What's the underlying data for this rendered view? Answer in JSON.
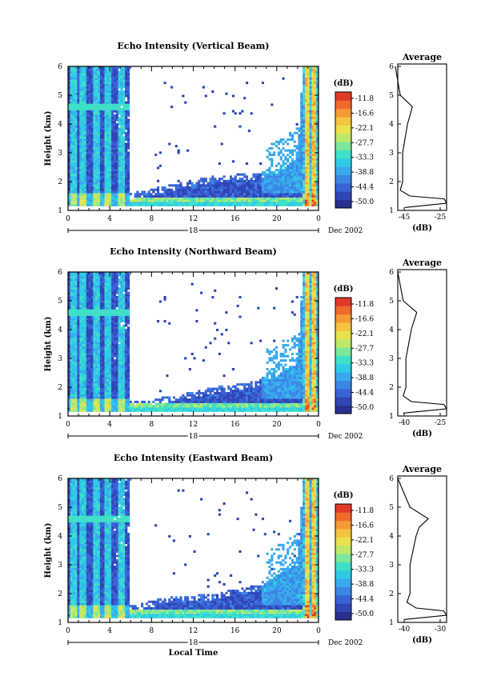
{
  "colormap": [
    "#2a2f8f",
    "#2f46b5",
    "#3a63d6",
    "#3c86e6",
    "#39a9ee",
    "#2fcbe6",
    "#3fe0c8",
    "#7ee89a",
    "#bfe86a",
    "#e9e24f",
    "#f5c33f",
    "#f59a34",
    "#f06a2c",
    "#e03a2a"
  ],
  "colorbar": {
    "unit": "(dB)",
    "ticks": [
      "-11.8",
      "-16.6",
      "-22.1",
      "-27.7",
      "-33.3",
      "-38.8",
      "-44.4",
      "-50.0"
    ]
  },
  "panels": [
    {
      "title": "Echo Intensity (Vertical Beam)",
      "ylabel": "Height (km)",
      "xticks": [
        "0",
        "4",
        "8",
        "12",
        "16",
        "20",
        "0"
      ],
      "date_day": "18",
      "date_label": "Dec 2002",
      "xlabel": "",
      "avg_title": "Average",
      "avg_xticks": [
        "-45",
        "-25"
      ],
      "avg_xlabel": "(dB)"
    },
    {
      "title": "Echo Intensity (Northward Beam)",
      "ylabel": "Height (km)",
      "xticks": [
        "0",
        "4",
        "8",
        "12",
        "16",
        "20",
        "0"
      ],
      "date_day": "18",
      "date_label": "Dec 2002",
      "xlabel": "",
      "avg_title": "Average",
      "avg_xticks": [
        "-40",
        "-25"
      ],
      "avg_xlabel": "(dB)"
    },
    {
      "title": "Echo Intensity (Eastward Beam)",
      "ylabel": "Height (km)",
      "xticks": [
        "0",
        "4",
        "8",
        "12",
        "16",
        "20",
        "0"
      ],
      "date_day": "18",
      "date_label": "Dec 2002",
      "xlabel": "Local Time",
      "avg_title": "Average",
      "avg_xticks": [
        "-40",
        "-30"
      ],
      "avg_xlabel": "(dB)"
    }
  ],
  "chart_data": [
    {
      "type": "heatmap",
      "title": "Echo Intensity (Vertical Beam)",
      "xlabel": "",
      "ylabel": "Height (km)",
      "xlim": [
        0,
        24
      ],
      "ylim": [
        1,
        6
      ],
      "xticks": [
        0,
        4,
        8,
        12,
        16,
        20,
        24
      ],
      "yticks": [
        1,
        2,
        3,
        4,
        5,
        6
      ],
      "colorbar_levels_dB": [
        -50.0,
        -44.4,
        -38.8,
        -33.3,
        -27.7,
        -22.1,
        -16.6,
        -11.8
      ],
      "approx_echo_top_km": [
        {
          "x": 0,
          "y": 6
        },
        {
          "x": 5.5,
          "y": 6
        },
        {
          "x": 6,
          "y": 1.6
        },
        {
          "x": 10,
          "y": 1.9
        },
        {
          "x": 14,
          "y": 2.2
        },
        {
          "x": 18,
          "y": 2.3
        },
        {
          "x": 20,
          "y": 2.5
        },
        {
          "x": 22,
          "y": 3.0
        },
        {
          "x": 22.5,
          "y": 6
        },
        {
          "x": 24,
          "y": 6
        }
      ],
      "average_profile": {
        "xlim": [
          -45,
          -25
        ],
        "xlabel": "(dB)",
        "ylim": [
          1,
          6
        ],
        "height_km": [
          1.1,
          1.25,
          1.4,
          1.5,
          1.7,
          2.0,
          2.5,
          3.0,
          3.5,
          4.0,
          4.3,
          4.6,
          5.0,
          5.5,
          6.0
        ],
        "echo_dB": [
          -42,
          -25,
          -26,
          -40,
          -44,
          -43,
          -43,
          -43,
          -42,
          -41,
          -40,
          -39,
          -44,
          -45,
          -46
        ]
      }
    },
    {
      "type": "heatmap",
      "title": "Echo Intensity (Northward Beam)",
      "xlabel": "",
      "ylabel": "Height (km)",
      "xlim": [
        0,
        24
      ],
      "ylim": [
        1,
        6
      ],
      "xticks": [
        0,
        4,
        8,
        12,
        16,
        20,
        24
      ],
      "yticks": [
        1,
        2,
        3,
        4,
        5,
        6
      ],
      "colorbar_levels_dB": [
        -50.0,
        -44.4,
        -38.8,
        -33.3,
        -27.7,
        -22.1,
        -16.6,
        -11.8
      ],
      "approx_echo_top_km": [
        {
          "x": 0,
          "y": 6
        },
        {
          "x": 5.5,
          "y": 6
        },
        {
          "x": 6,
          "y": 1.5
        },
        {
          "x": 10,
          "y": 1.7
        },
        {
          "x": 14,
          "y": 2.0
        },
        {
          "x": 18,
          "y": 2.2
        },
        {
          "x": 20,
          "y": 2.6
        },
        {
          "x": 22,
          "y": 3.0
        },
        {
          "x": 22.5,
          "y": 6
        },
        {
          "x": 24,
          "y": 6
        }
      ],
      "average_profile": {
        "xlim": [
          -42,
          -24
        ],
        "xlabel": "(dB)",
        "ylim": [
          1,
          6
        ],
        "height_km": [
          1.1,
          1.25,
          1.4,
          1.5,
          1.7,
          2.0,
          2.5,
          3.0,
          3.5,
          4.0,
          4.3,
          4.6,
          5.0,
          5.5,
          6.0
        ],
        "echo_dB": [
          -40,
          -24,
          -25,
          -37,
          -40,
          -39,
          -39,
          -39,
          -38,
          -37,
          -36,
          -35,
          -40,
          -41,
          -42
        ]
      }
    },
    {
      "type": "heatmap",
      "title": "Echo Intensity (Eastward Beam)",
      "xlabel": "Local Time",
      "ylabel": "Height (km)",
      "xlim": [
        0,
        24
      ],
      "ylim": [
        1,
        6
      ],
      "xticks": [
        0,
        4,
        8,
        12,
        16,
        20,
        24
      ],
      "yticks": [
        1,
        2,
        3,
        4,
        5,
        6
      ],
      "colorbar_levels_dB": [
        -50.0,
        -44.4,
        -38.8,
        -33.3,
        -27.7,
        -22.1,
        -16.6,
        -11.8
      ],
      "approx_echo_top_km": [
        {
          "x": 0,
          "y": 6
        },
        {
          "x": 5.5,
          "y": 6
        },
        {
          "x": 6,
          "y": 1.6
        },
        {
          "x": 10,
          "y": 1.9
        },
        {
          "x": 14,
          "y": 2.0
        },
        {
          "x": 18,
          "y": 2.3
        },
        {
          "x": 20,
          "y": 2.8
        },
        {
          "x": 22,
          "y": 3.2
        },
        {
          "x": 22.5,
          "y": 6
        },
        {
          "x": 24,
          "y": 6
        }
      ],
      "average_profile": {
        "xlim": [
          -44,
          -28
        ],
        "xlabel": "(dB)",
        "ylim": [
          1,
          6
        ],
        "height_km": [
          1.1,
          1.25,
          1.4,
          1.5,
          1.7,
          2.0,
          2.5,
          3.0,
          3.5,
          4.0,
          4.3,
          4.6,
          5.0,
          5.5,
          6.0
        ],
        "echo_dB": [
          -42,
          -28,
          -29,
          -38,
          -41,
          -40,
          -40,
          -40,
          -39,
          -38,
          -37,
          -34,
          -40,
          -42,
          -44
        ]
      }
    }
  ]
}
